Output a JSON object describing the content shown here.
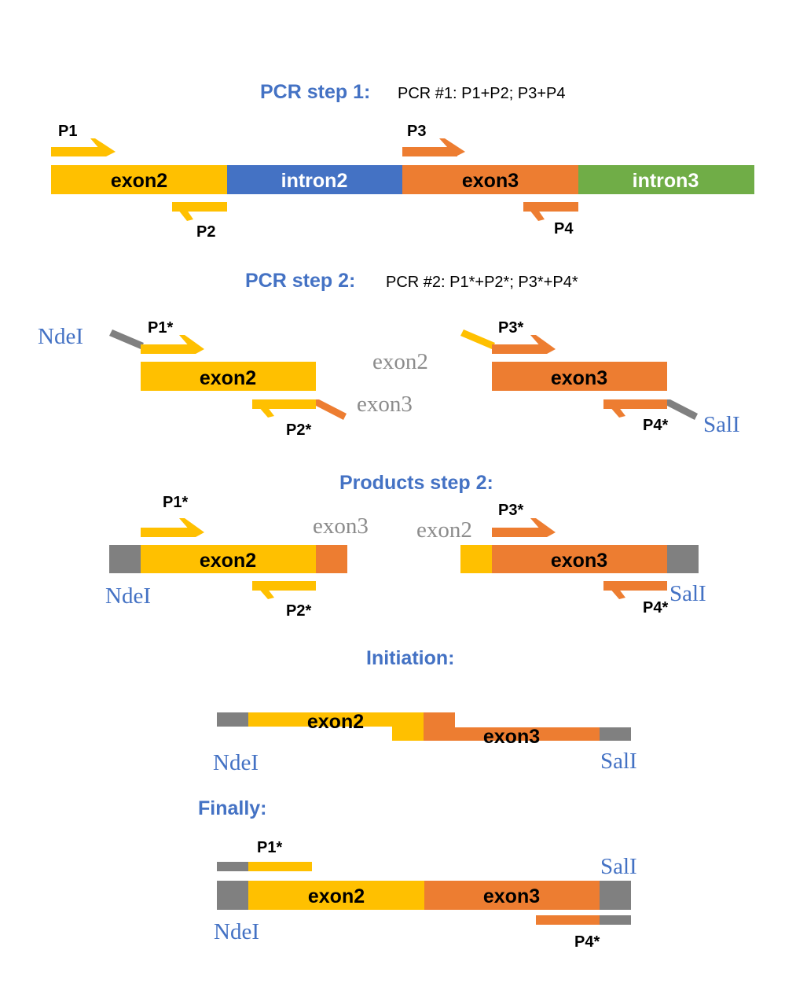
{
  "colors": {
    "exon2": "#FFC000",
    "intron2": "#4472C4",
    "exon3": "#ED7D31",
    "intron3": "#70AD47",
    "adapter": "#808080",
    "heading": "#4472C4",
    "site": "#4472C4",
    "ghost": "#8C8C8C",
    "label": "#000000",
    "intron_label": "#FFFFFF"
  },
  "step1": {
    "heading": "PCR step 1:",
    "sub": "PCR #1: P1+P2; P3+P4",
    "segments": {
      "exon2": "exon2",
      "intron2": "intron2",
      "exon3": "exon3",
      "intron3": "intron3"
    },
    "primers": {
      "p1": "P1",
      "p2": "P2",
      "p3": "P3",
      "p4": "P4"
    }
  },
  "step2": {
    "heading": "PCR step 2:",
    "sub": "PCR #2: P1*+P2*; P3*+P4*",
    "left": {
      "site": "NdeI",
      "primer_f": "P1*",
      "segment": "exon2",
      "primer_r": "P2*",
      "tail": "exon3"
    },
    "right": {
      "tail": "exon2",
      "primer_f": "P3*",
      "segment": "exon3",
      "primer_r": "P4*",
      "site": "SalI"
    }
  },
  "products": {
    "heading": "Products step 2:",
    "left": {
      "primer_f": "P1*",
      "overhang": "exon3",
      "segment": "exon2",
      "site": "NdeI",
      "primer_r": "P2*"
    },
    "right": {
      "overhang": "exon2",
      "primer_f": "P3*",
      "segment": "exon3",
      "site": "SalI",
      "primer_r": "P4*"
    }
  },
  "initiation": {
    "heading": "Initiation:",
    "exon2": "exon2",
    "exon3": "exon3",
    "site_left": "NdeI",
    "site_right": "SalI"
  },
  "finally": {
    "heading": "Finally:",
    "primer_f": "P1*",
    "site_right": "SalI",
    "exon2": "exon2",
    "exon3": "exon3",
    "site_left": "NdeI",
    "primer_r": "P4*"
  }
}
